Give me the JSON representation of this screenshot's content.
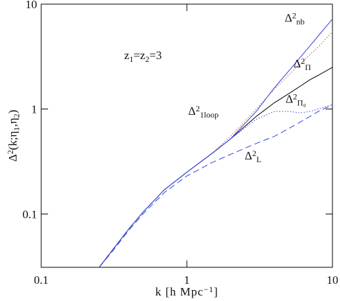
{
  "chart_data": {
    "type": "line",
    "log_x": true,
    "log_y": true,
    "xlim": [
      0.1,
      10
    ],
    "ylim": [
      0.031,
      10
    ],
    "xticks": [
      0.1,
      1,
      10
    ],
    "yticks": [
      0.1,
      1,
      10
    ],
    "x": [
      0.25,
      0.3,
      0.4,
      0.5,
      0.7,
      1,
      1.5,
      2,
      3,
      4,
      5,
      6,
      7,
      8,
      10
    ],
    "series": [
      {
        "color": "#3344dd",
        "style": "dashed",
        "values": [
          0.031,
          0.042,
          0.07,
          0.1,
          0.16,
          0.23,
          0.31,
          0.37,
          0.47,
          0.55,
          0.65,
          0.75,
          0.85,
          0.95,
          1.1
        ]
      },
      {
        "color": "#ff3333",
        "style": "dotted",
        "values": [
          0.031,
          0.043,
          0.072,
          0.104,
          0.17,
          0.25,
          0.38,
          0.55,
          1.0,
          1.55,
          2.1,
          2.7,
          3.3,
          3.9,
          5.5
        ]
      },
      {
        "color": "#000000",
        "style": "solid",
        "values": [
          0.031,
          0.043,
          0.072,
          0.104,
          0.17,
          0.25,
          0.38,
          0.52,
          0.85,
          1.15,
          1.4,
          1.65,
          1.9,
          2.1,
          2.5
        ]
      },
      {
        "color": "#3344dd",
        "style": "dotted",
        "values": [
          0.031,
          0.043,
          0.072,
          0.104,
          0.17,
          0.25,
          0.38,
          0.52,
          0.8,
          0.95,
          0.95,
          0.92,
          0.95,
          1.0,
          1.1
        ]
      },
      {
        "color": "#3344dd",
        "style": "solid",
        "values": [
          0.031,
          0.043,
          0.072,
          0.104,
          0.17,
          0.25,
          0.38,
          0.52,
          0.95,
          1.6,
          2.3,
          3.1,
          4.0,
          5.0,
          7.2
        ]
      }
    ],
    "xlabel": {
      "parts": [
        "k  [h Mpc",
        "−1",
        "]"
      ],
      "styles": [
        "base",
        "sup",
        "base"
      ]
    },
    "ylabel": {
      "parts": [
        "Δ",
        "2",
        "(k;η",
        "1",
        ",η",
        "2",
        ")"
      ],
      "styles": [
        "base",
        "sup",
        "base",
        "sub",
        "base",
        "sub",
        "base"
      ]
    },
    "annotations": [
      {
        "parts": [
          "z",
          "1",
          "=z",
          "2",
          "=3"
        ],
        "styles": [
          "base",
          "sub",
          "base",
          "sub",
          "base"
        ],
        "at": [
          0.5,
          3.0
        ]
      },
      {
        "parts": [
          "Δ",
          "2",
          "nb"
        ],
        "styles": [
          "base",
          "sup",
          "sub"
        ],
        "at": [
          5.5,
          6.8
        ]
      },
      {
        "parts": [
          "Δ",
          "2",
          "Π"
        ],
        "styles": [
          "base",
          "sup",
          "sub"
        ],
        "at": [
          6.2,
          2.5
        ]
      },
      {
        "parts": [
          "Δ",
          "2",
          "Π₀"
        ],
        "styles": [
          "base",
          "sup",
          "sub"
        ],
        "at": [
          5.6,
          1.15
        ]
      },
      {
        "parts": [
          "Δ",
          "2",
          "1loop"
        ],
        "styles": [
          "base",
          "sup",
          "sub"
        ],
        "at": [
          1.3,
          0.88
        ]
      },
      {
        "parts": [
          "Δ",
          "2",
          "L"
        ],
        "styles": [
          "base",
          "sup",
          "sub"
        ],
        "at": [
          2.85,
          0.33
        ]
      }
    ]
  }
}
